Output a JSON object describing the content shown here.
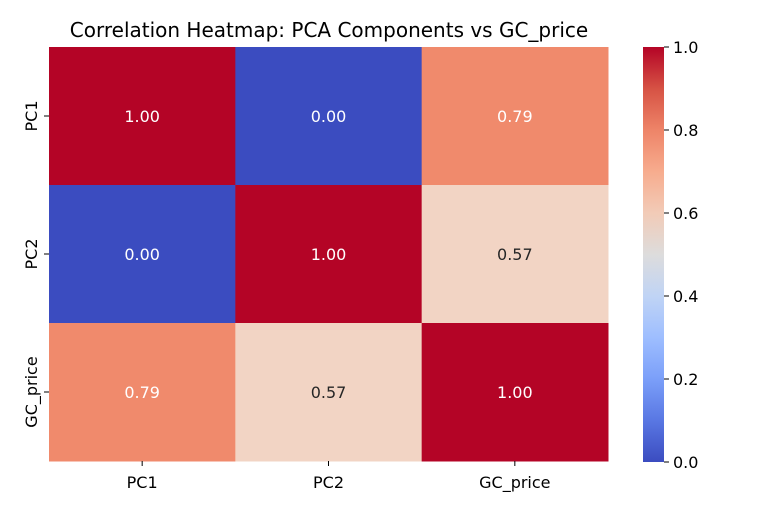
{
  "chart_data": {
    "type": "heatmap",
    "title": "Correlation Heatmap: PCA Components vs GC_price",
    "x_labels": [
      "PC1",
      "PC2",
      "GC_price"
    ],
    "y_labels": [
      "PC1",
      "PC2",
      "GC_price"
    ],
    "values": [
      [
        1.0,
        0.0,
        0.79
      ],
      [
        0.0,
        1.0,
        0.57
      ],
      [
        0.79,
        0.57,
        1.0
      ]
    ],
    "value_labels": [
      [
        "1.00",
        "0.00",
        "0.79"
      ],
      [
        "0.00",
        "1.00",
        "0.57"
      ],
      [
        "0.79",
        "0.57",
        "1.00"
      ]
    ],
    "colormap": "coolwarm",
    "cell_colors": [
      [
        "#b40426",
        "#3b4cc0",
        "#f08a6c"
      ],
      [
        "#3b4cc0",
        "#b40426",
        "#f2d4c4"
      ],
      [
        "#f08a6c",
        "#f2d4c4",
        "#b40426"
      ]
    ],
    "label_colors": [
      [
        "#ffffff",
        "#ffffff",
        "#ffffff"
      ],
      [
        "#ffffff",
        "#ffffff",
        "#262626"
      ],
      [
        "#ffffff",
        "#262626",
        "#ffffff"
      ]
    ],
    "colorbar": {
      "range": [
        0.0,
        1.0
      ],
      "ticks": [
        0.0,
        0.2,
        0.4,
        0.6,
        0.8,
        1.0
      ],
      "tick_labels": [
        "0.0",
        "0.2",
        "0.4",
        "0.6",
        "0.8",
        "1.0"
      ]
    }
  }
}
